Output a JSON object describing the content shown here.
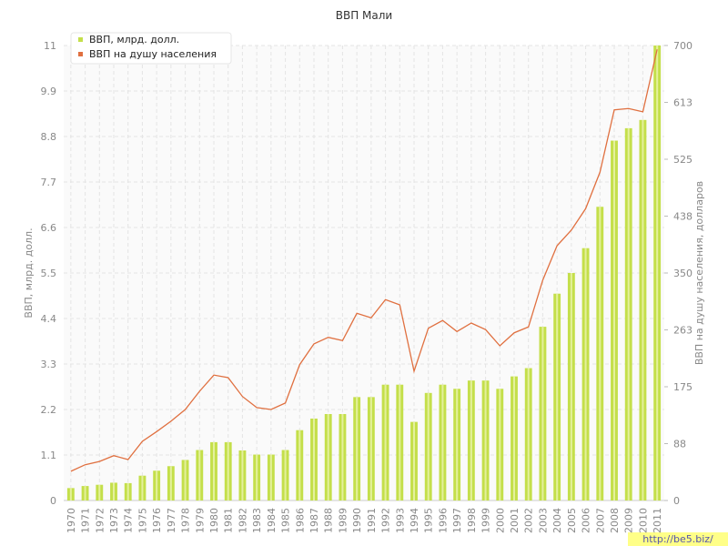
{
  "chart_data": {
    "type": "bar-line",
    "title": "ВВП Мали",
    "y_label": "ВВП, млрд. долл.",
    "y2_label": "ВВП на душу населения, долларов",
    "watermark": "http://be5.biz/",
    "categories": [
      "1970",
      "1971",
      "1972",
      "1973",
      "1974",
      "1975",
      "1976",
      "1977",
      "1978",
      "1979",
      "1980",
      "1981",
      "1982",
      "1983",
      "1984",
      "1985",
      "1986",
      "1987",
      "1988",
      "1989",
      "1990",
      "1991",
      "1992",
      "1993",
      "1994",
      "1995",
      "1996",
      "1997",
      "1998",
      "1999",
      "2000",
      "2001",
      "2002",
      "2003",
      "2004",
      "2005",
      "2006",
      "2007",
      "2008",
      "2009",
      "2010",
      "2011"
    ],
    "series": [
      {
        "name": "ВВП, млрд. долл.",
        "color": "#c4df4a",
        "kind": "bar",
        "values": [
          0.3,
          0.35,
          0.38,
          0.43,
          0.42,
          0.6,
          0.72,
          0.83,
          0.98,
          1.22,
          1.41,
          1.41,
          1.21,
          1.11,
          1.11,
          1.22,
          1.7,
          1.98,
          2.09,
          2.09,
          2.5,
          2.5,
          2.8,
          2.8,
          1.9,
          2.6,
          2.8,
          2.7,
          2.9,
          2.9,
          2.7,
          3.0,
          3.2,
          4.2,
          5.0,
          5.5,
          6.1,
          7.1,
          8.7,
          9.0,
          9.2,
          11.0
        ]
      },
      {
        "name": "ВВП на душу населения",
        "color": "#e07040",
        "kind": "line",
        "axis": "y2",
        "values": [
          45,
          55,
          60,
          69,
          63,
          91,
          106,
          122,
          140,
          168,
          193,
          189,
          160,
          143,
          140,
          150,
          209,
          241,
          251,
          246,
          288,
          281,
          309,
          301,
          199,
          265,
          277,
          260,
          273,
          263,
          238,
          258,
          267,
          339,
          392,
          416,
          449,
          505,
          601,
          603,
          598,
          694
        ]
      }
    ],
    "ylim": [
      0,
      11
    ],
    "yticks": [
      0,
      1.1,
      2.2,
      3.3,
      4.4,
      5.5,
      6.6,
      7.7,
      8.8,
      9.9,
      11
    ],
    "y2lim": [
      0,
      700
    ],
    "y2ticks": [
      0,
      {
        "value": 87.5,
        "label": "88"
      },
      175,
      {
        "value": 262.5,
        "label": "263"
      },
      350,
      {
        "value": 437.5,
        "label": "438"
      },
      525,
      {
        "value": 612.5,
        "label": "613"
      },
      700
    ],
    "grid": true,
    "legend": "top-left"
  }
}
